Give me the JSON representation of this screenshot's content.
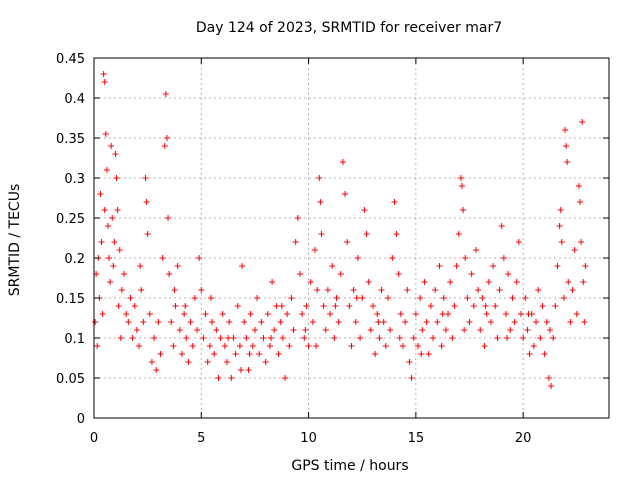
{
  "chart_data": {
    "type": "scatter",
    "title": "Day 124 of 2023, SRMTID for receiver mar7",
    "xlabel": "GPS time / hours",
    "ylabel": "SRMTID / TECUs",
    "xlim": [
      0,
      24
    ],
    "ylim": [
      0,
      0.45
    ],
    "xticks": [
      0,
      5,
      10,
      15,
      20
    ],
    "xtick_labels": [
      "0",
      "5",
      "10",
      "15",
      "20"
    ],
    "yticks": [
      0,
      0.05,
      0.1,
      0.15,
      0.2,
      0.25,
      0.3,
      0.35,
      0.4,
      0.45
    ],
    "ytick_labels": [
      "0",
      "0.05",
      "0.1",
      "0.15",
      "0.2",
      "0.25",
      "0.3",
      "0.35",
      "0.4",
      "0.45"
    ],
    "grid": true,
    "marker": "+",
    "color": "#ff0000",
    "series": [
      {
        "name": "SRMTID",
        "points": [
          [
            0.05,
            0.12
          ],
          [
            0.1,
            0.18
          ],
          [
            0.15,
            0.09
          ],
          [
            0.2,
            0.2
          ],
          [
            0.25,
            0.15
          ],
          [
            0.3,
            0.28
          ],
          [
            0.35,
            0.22
          ],
          [
            0.4,
            0.13
          ],
          [
            0.45,
            0.43
          ],
          [
            0.5,
            0.42
          ],
          [
            0.5,
            0.26
          ],
          [
            0.55,
            0.355
          ],
          [
            0.6,
            0.31
          ],
          [
            0.65,
            0.24
          ],
          [
            0.7,
            0.2
          ],
          [
            0.75,
            0.17
          ],
          [
            0.8,
            0.34
          ],
          [
            0.85,
            0.25
          ],
          [
            0.9,
            0.19
          ],
          [
            0.95,
            0.22
          ],
          [
            1.0,
            0.33
          ],
          [
            1.05,
            0.3
          ],
          [
            1.1,
            0.26
          ],
          [
            1.2,
            0.21
          ],
          [
            1.3,
            0.16
          ],
          [
            1.4,
            0.18
          ],
          [
            1.5,
            0.13
          ],
          [
            1.6,
            0.12
          ],
          [
            1.7,
            0.15
          ],
          [
            1.8,
            0.1
          ],
          [
            1.9,
            0.14
          ],
          [
            2.0,
            0.11
          ],
          [
            2.1,
            0.09
          ],
          [
            2.2,
            0.16
          ],
          [
            2.3,
            0.12
          ],
          [
            2.4,
            0.3
          ],
          [
            2.45,
            0.27
          ],
          [
            2.5,
            0.23
          ],
          [
            2.6,
            0.13
          ],
          [
            2.7,
            0.07
          ],
          [
            2.8,
            0.1
          ],
          [
            2.9,
            0.06
          ],
          [
            3.0,
            0.12
          ],
          [
            3.1,
            0.08
          ],
          [
            3.2,
            0.2
          ],
          [
            3.3,
            0.34
          ],
          [
            3.35,
            0.405
          ],
          [
            3.4,
            0.35
          ],
          [
            3.45,
            0.25
          ],
          [
            3.5,
            0.18
          ],
          [
            3.6,
            0.12
          ],
          [
            3.7,
            0.09
          ],
          [
            3.8,
            0.14
          ],
          [
            3.9,
            0.19
          ],
          [
            4.0,
            0.11
          ],
          [
            4.1,
            0.08
          ],
          [
            4.2,
            0.13
          ],
          [
            4.3,
            0.1
          ],
          [
            4.4,
            0.07
          ],
          [
            4.5,
            0.12
          ],
          [
            4.6,
            0.09
          ],
          [
            4.7,
            0.15
          ],
          [
            4.8,
            0.11
          ],
          [
            4.9,
            0.2
          ],
          [
            5.0,
            0.16
          ],
          [
            5.1,
            0.1
          ],
          [
            5.2,
            0.13
          ],
          [
            5.3,
            0.07
          ],
          [
            5.4,
            0.09
          ],
          [
            5.5,
            0.12
          ],
          [
            5.6,
            0.08
          ],
          [
            5.7,
            0.11
          ],
          [
            5.8,
            0.05
          ],
          [
            5.9,
            0.1
          ],
          [
            6.0,
            0.13
          ],
          [
            6.1,
            0.09
          ],
          [
            6.2,
            0.07
          ],
          [
            6.3,
            0.12
          ],
          [
            6.4,
            0.05
          ],
          [
            6.5,
            0.1
          ],
          [
            6.6,
            0.08
          ],
          [
            6.7,
            0.14
          ],
          [
            6.8,
            0.09
          ],
          [
            6.9,
            0.19
          ],
          [
            7.0,
            0.12
          ],
          [
            7.1,
            0.1
          ],
          [
            7.2,
            0.06
          ],
          [
            7.3,
            0.13
          ],
          [
            7.4,
            0.09
          ],
          [
            7.5,
            0.11
          ],
          [
            7.6,
            0.15
          ],
          [
            7.7,
            0.08
          ],
          [
            7.8,
            0.12
          ],
          [
            7.9,
            0.1
          ],
          [
            8.0,
            0.07
          ],
          [
            8.1,
            0.13
          ],
          [
            8.2,
            0.09
          ],
          [
            8.3,
            0.17
          ],
          [
            8.4,
            0.11
          ],
          [
            8.5,
            0.14
          ],
          [
            8.6,
            0.08
          ],
          [
            8.7,
            0.12
          ],
          [
            8.8,
            0.1
          ],
          [
            8.9,
            0.05
          ],
          [
            9.0,
            0.13
          ],
          [
            9.1,
            0.09
          ],
          [
            9.2,
            0.15
          ],
          [
            9.3,
            0.11
          ],
          [
            9.4,
            0.22
          ],
          [
            9.5,
            0.25
          ],
          [
            9.6,
            0.18
          ],
          [
            9.7,
            0.13
          ],
          [
            9.8,
            0.1
          ],
          [
            9.9,
            0.14
          ],
          [
            10.0,
            0.09
          ],
          [
            10.1,
            0.17
          ],
          [
            10.2,
            0.12
          ],
          [
            10.3,
            0.21
          ],
          [
            10.4,
            0.16
          ],
          [
            10.5,
            0.3
          ],
          [
            10.55,
            0.27
          ],
          [
            10.6,
            0.23
          ],
          [
            10.7,
            0.14
          ],
          [
            10.8,
            0.11
          ],
          [
            10.9,
            0.16
          ],
          [
            11.0,
            0.13
          ],
          [
            11.1,
            0.19
          ],
          [
            11.2,
            0.1
          ],
          [
            11.3,
            0.15
          ],
          [
            11.4,
            0.12
          ],
          [
            11.5,
            0.18
          ],
          [
            11.6,
            0.32
          ],
          [
            11.7,
            0.28
          ],
          [
            11.8,
            0.22
          ],
          [
            11.9,
            0.14
          ],
          [
            12.0,
            0.09
          ],
          [
            12.1,
            0.16
          ],
          [
            12.2,
            0.12
          ],
          [
            12.3,
            0.2
          ],
          [
            12.4,
            0.1
          ],
          [
            12.5,
            0.15
          ],
          [
            12.6,
            0.26
          ],
          [
            12.7,
            0.23
          ],
          [
            12.8,
            0.17
          ],
          [
            12.9,
            0.11
          ],
          [
            13.0,
            0.14
          ],
          [
            13.1,
            0.08
          ],
          [
            13.2,
            0.13
          ],
          [
            13.3,
            0.1
          ],
          [
            13.4,
            0.16
          ],
          [
            13.5,
            0.12
          ],
          [
            13.6,
            0.09
          ],
          [
            13.7,
            0.15
          ],
          [
            13.8,
            0.11
          ],
          [
            13.9,
            0.2
          ],
          [
            14.0,
            0.27
          ],
          [
            14.1,
            0.23
          ],
          [
            14.2,
            0.18
          ],
          [
            14.3,
            0.13
          ],
          [
            14.4,
            0.09
          ],
          [
            14.5,
            0.12
          ],
          [
            14.6,
            0.16
          ],
          [
            14.7,
            0.07
          ],
          [
            14.8,
            0.05
          ],
          [
            14.9,
            0.1
          ],
          [
            15.0,
            0.13
          ],
          [
            15.1,
            0.09
          ],
          [
            15.2,
            0.15
          ],
          [
            15.3,
            0.11
          ],
          [
            15.4,
            0.17
          ],
          [
            15.5,
            0.12
          ],
          [
            15.6,
            0.08
          ],
          [
            15.7,
            0.14
          ],
          [
            15.8,
            0.1
          ],
          [
            15.9,
            0.16
          ],
          [
            16.0,
            0.12
          ],
          [
            16.1,
            0.19
          ],
          [
            16.2,
            0.09
          ],
          [
            16.3,
            0.15
          ],
          [
            16.4,
            0.11
          ],
          [
            16.5,
            0.13
          ],
          [
            16.6,
            0.17
          ],
          [
            16.7,
            0.1
          ],
          [
            16.8,
            0.14
          ],
          [
            16.9,
            0.19
          ],
          [
            17.0,
            0.23
          ],
          [
            17.1,
            0.3
          ],
          [
            17.15,
            0.29
          ],
          [
            17.2,
            0.26
          ],
          [
            17.3,
            0.2
          ],
          [
            17.4,
            0.15
          ],
          [
            17.5,
            0.12
          ],
          [
            17.6,
            0.18
          ],
          [
            17.7,
            0.14
          ],
          [
            17.8,
            0.21
          ],
          [
            17.9,
            0.16
          ],
          [
            18.0,
            0.11
          ],
          [
            18.1,
            0.15
          ],
          [
            18.2,
            0.09
          ],
          [
            18.3,
            0.13
          ],
          [
            18.4,
            0.17
          ],
          [
            18.5,
            0.12
          ],
          [
            18.6,
            0.19
          ],
          [
            18.7,
            0.14
          ],
          [
            18.8,
            0.1
          ],
          [
            18.9,
            0.16
          ],
          [
            19.0,
            0.24
          ],
          [
            19.1,
            0.2
          ],
          [
            19.2,
            0.13
          ],
          [
            19.3,
            0.18
          ],
          [
            19.4,
            0.11
          ],
          [
            19.5,
            0.15
          ],
          [
            19.6,
            0.12
          ],
          [
            19.7,
            0.17
          ],
          [
            19.8,
            0.22
          ],
          [
            19.9,
            0.13
          ],
          [
            20.0,
            0.1
          ],
          [
            20.1,
            0.15
          ],
          [
            20.2,
            0.11
          ],
          [
            20.3,
            0.08
          ],
          [
            20.4,
            0.13
          ],
          [
            20.5,
            0.09
          ],
          [
            20.6,
            0.12
          ],
          [
            20.7,
            0.16
          ],
          [
            20.8,
            0.1
          ],
          [
            20.9,
            0.14
          ],
          [
            21.0,
            0.08
          ],
          [
            21.1,
            0.12
          ],
          [
            21.2,
            0.05
          ],
          [
            21.3,
            0.04
          ],
          [
            21.4,
            0.1
          ],
          [
            21.5,
            0.14
          ],
          [
            21.6,
            0.19
          ],
          [
            21.7,
            0.24
          ],
          [
            21.75,
            0.26
          ],
          [
            21.8,
            0.22
          ],
          [
            21.9,
            0.15
          ],
          [
            21.95,
            0.36
          ],
          [
            22.0,
            0.34
          ],
          [
            22.05,
            0.32
          ],
          [
            22.1,
            0.17
          ],
          [
            22.2,
            0.12
          ],
          [
            22.3,
            0.16
          ],
          [
            22.4,
            0.21
          ],
          [
            22.5,
            0.13
          ],
          [
            22.6,
            0.29
          ],
          [
            22.65,
            0.27
          ],
          [
            22.7,
            0.22
          ],
          [
            22.75,
            0.37
          ],
          [
            22.8,
            0.17
          ],
          [
            22.85,
            0.12
          ],
          [
            22.9,
            0.19
          ],
          [
            1.15,
            0.14
          ],
          [
            1.25,
            0.1
          ],
          [
            2.15,
            0.19
          ],
          [
            3.75,
            0.16
          ],
          [
            4.25,
            0.14
          ],
          [
            5.45,
            0.15
          ],
          [
            6.25,
            0.1
          ],
          [
            6.85,
            0.06
          ],
          [
            7.25,
            0.08
          ],
          [
            8.25,
            0.1
          ],
          [
            8.75,
            0.14
          ],
          [
            9.85,
            0.11
          ],
          [
            10.35,
            0.09
          ],
          [
            11.25,
            0.14
          ],
          [
            12.25,
            0.15
          ],
          [
            13.25,
            0.12
          ],
          [
            14.25,
            0.1
          ],
          [
            15.25,
            0.08
          ],
          [
            16.25,
            0.13
          ],
          [
            17.25,
            0.11
          ],
          [
            18.25,
            0.14
          ],
          [
            19.25,
            0.1
          ],
          [
            20.25,
            0.13
          ],
          [
            21.25,
            0.11
          ]
        ]
      }
    ]
  }
}
